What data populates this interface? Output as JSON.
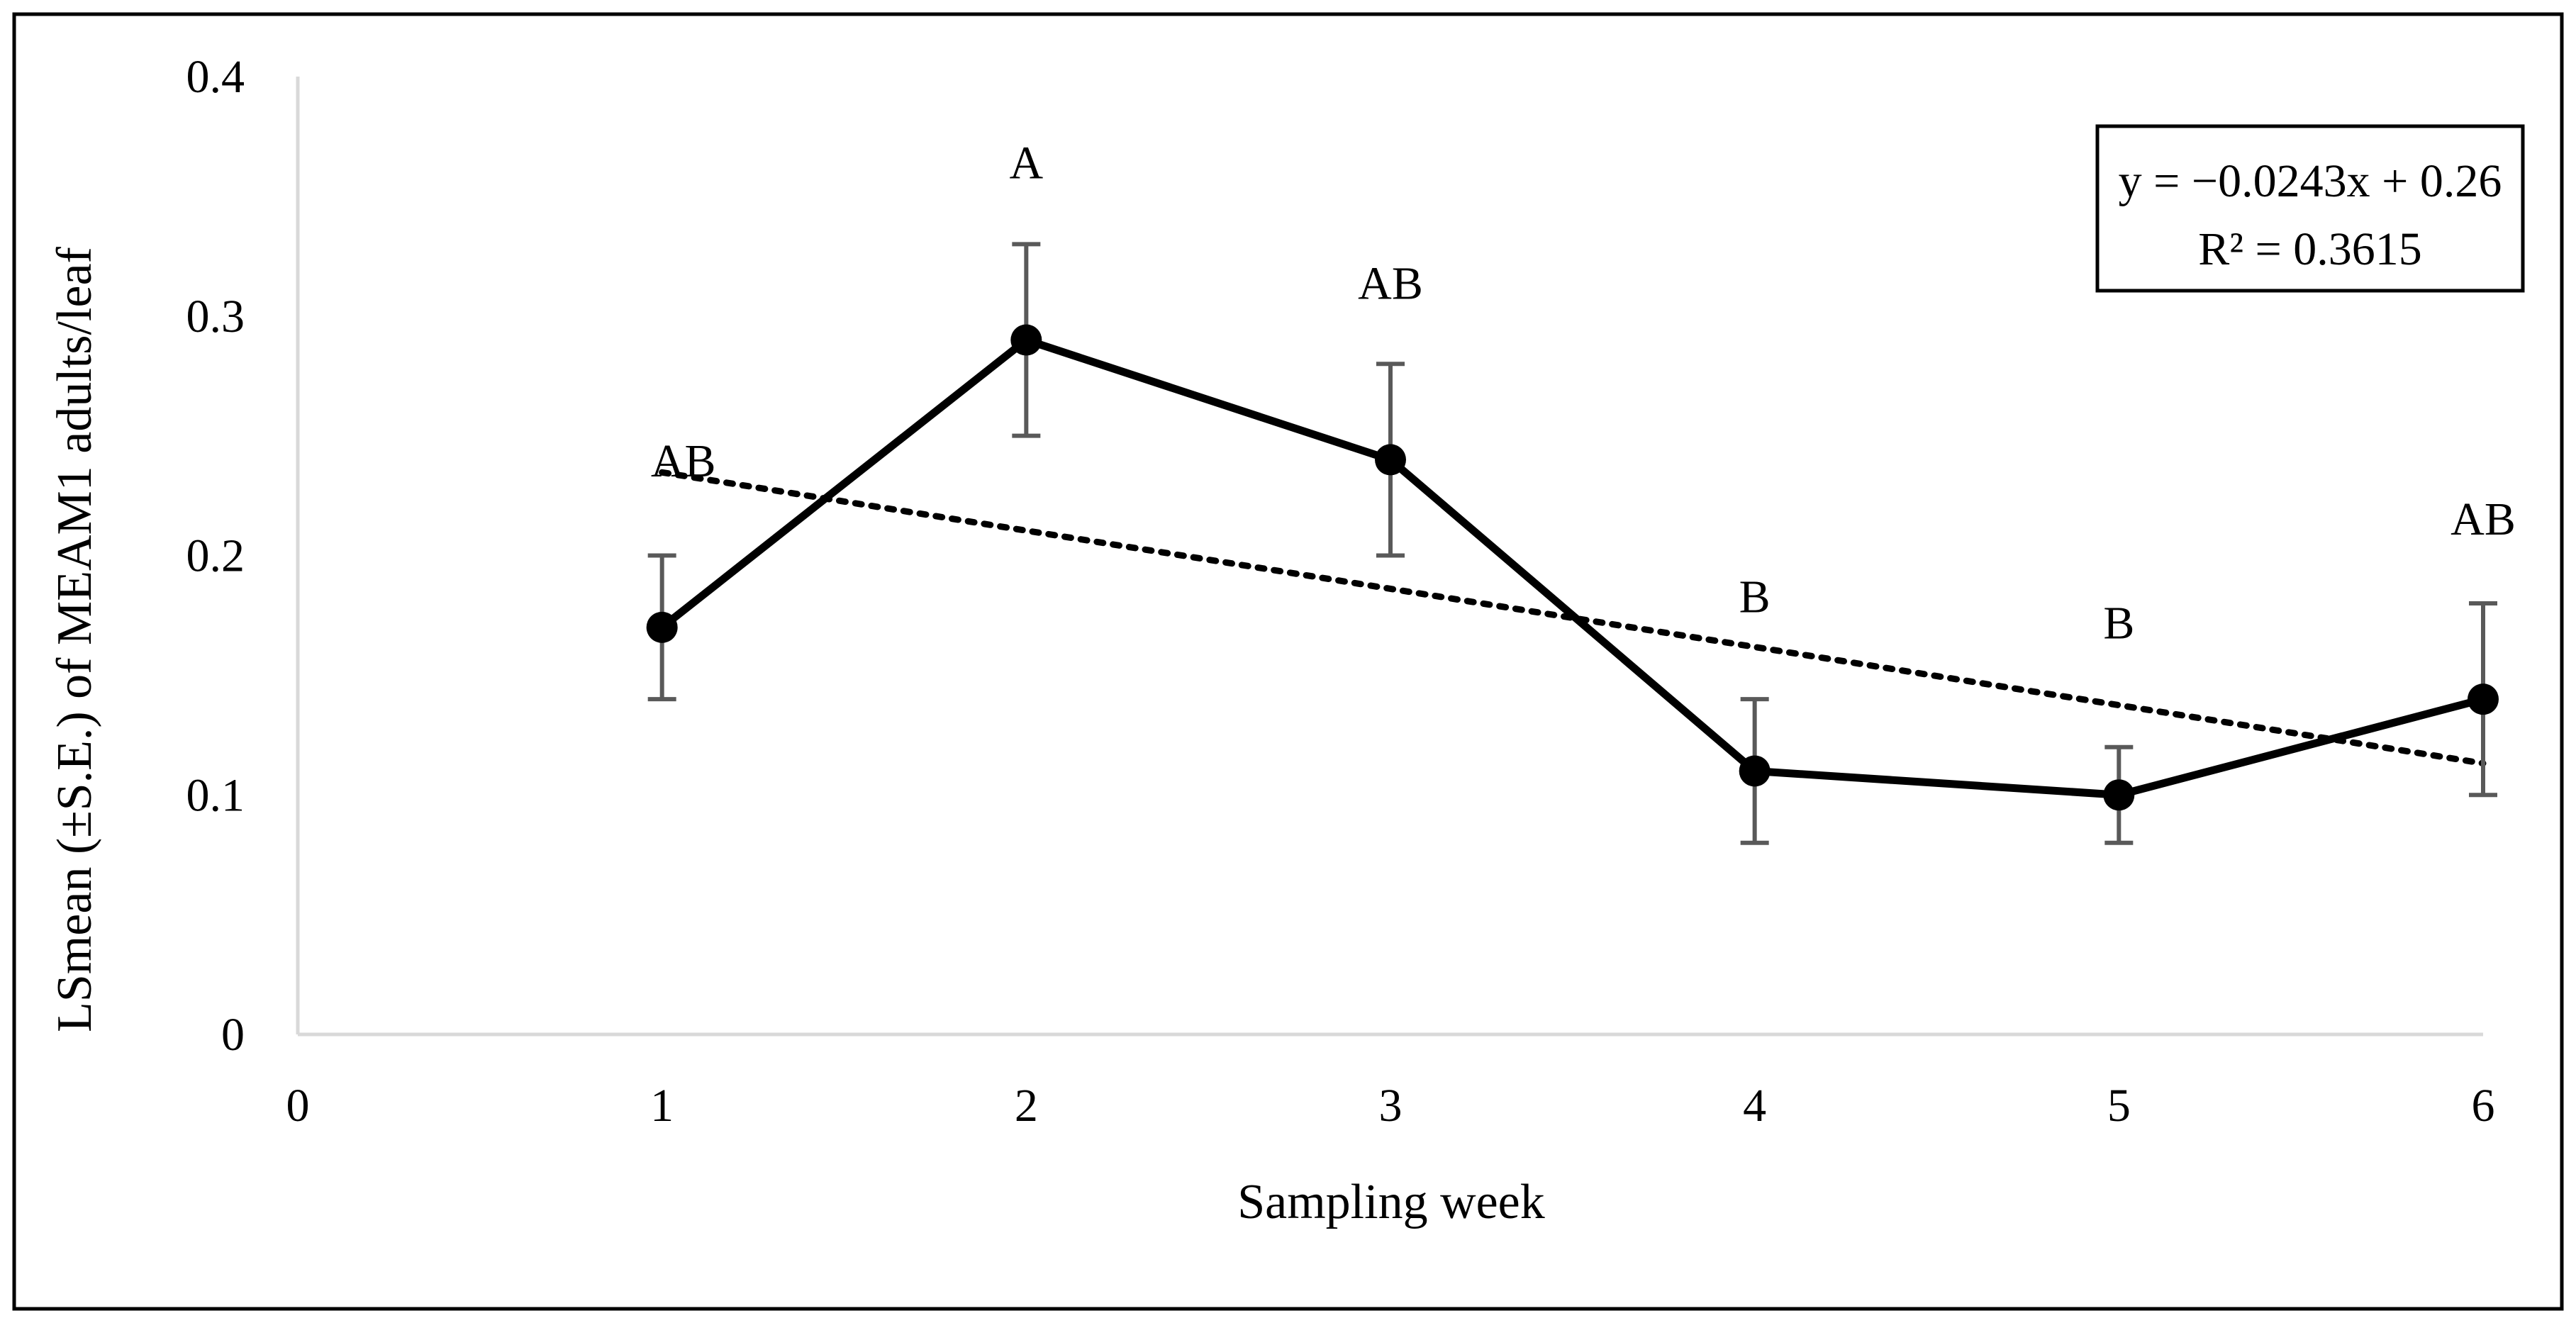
{
  "chart_data": {
    "type": "line",
    "xlabel": "Sampling week",
    "ylabel": "LSmean (±S.E.) of MEAM1 adults/leaf",
    "xlim": [
      0,
      6
    ],
    "ylim": [
      0,
      0.4
    ],
    "x_ticks": [
      "0",
      "1",
      "2",
      "3",
      "4",
      "5",
      "6"
    ],
    "y_ticks": [
      "0",
      "0.1",
      "0.2",
      "0.3",
      "0.4"
    ],
    "grid": false,
    "x": [
      1,
      2,
      3,
      4,
      5,
      6
    ],
    "series": [
      {
        "values": [
          0.17,
          0.29,
          0.24,
          0.11,
          0.1,
          0.14
        ],
        "error_low": [
          0.14,
          0.25,
          0.2,
          0.08,
          0.08,
          0.1
        ],
        "error_high": [
          0.2,
          0.33,
          0.28,
          0.14,
          0.12,
          0.18
        ],
        "letters": [
          "AB",
          "A",
          "AB",
          "B",
          "B",
          "AB"
        ]
      }
    ],
    "trendline": {
      "style": "dotted",
      "slope": -0.0243,
      "intercept": 0.26,
      "equation_text": "y = −0.0243x + 0.26",
      "r2_text": "R² = 0.3615"
    },
    "colors": {
      "series": "#000000",
      "error_bars": "#595959",
      "axis": "#d9d9d9",
      "frame": "#000000"
    }
  }
}
